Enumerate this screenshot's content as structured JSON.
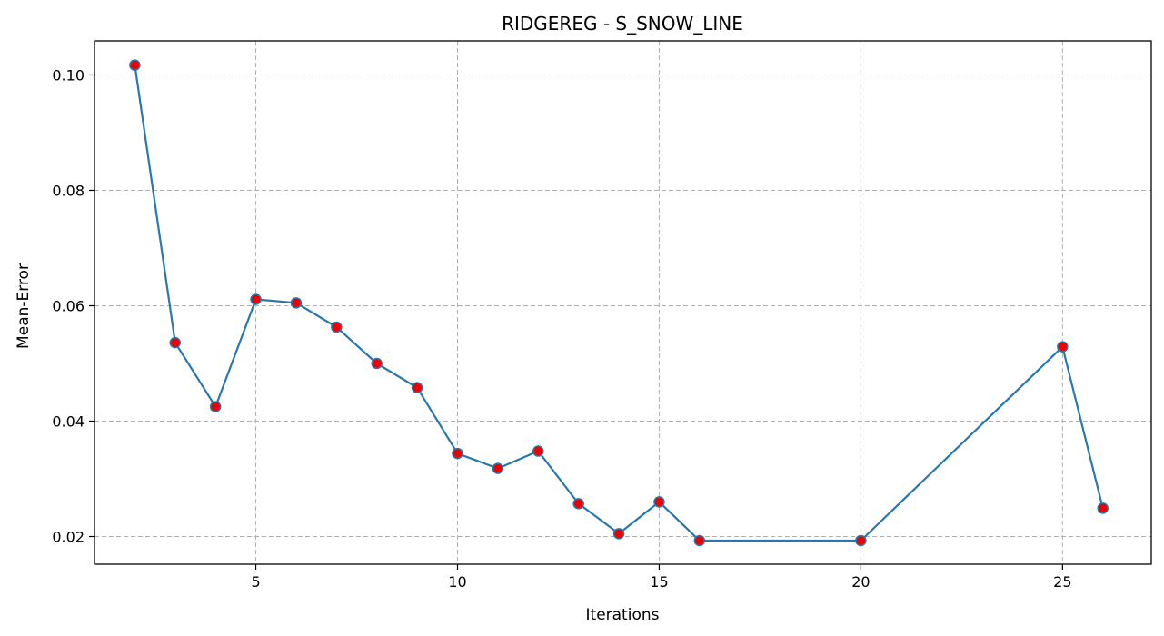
{
  "chart_data": {
    "type": "line",
    "title": "RIDGEREG - S_SNOW_LINE",
    "xlabel": "Iterations",
    "ylabel": "Mean-Error",
    "xlim": [
      1.0,
      27.2
    ],
    "ylim": [
      0.0152,
      0.1059
    ],
    "xticks": [
      5,
      10,
      15,
      20,
      25
    ],
    "yticks": [
      0.02,
      0.04,
      0.06,
      0.08,
      0.1
    ],
    "ytick_labels": [
      "0.02",
      "0.04",
      "0.06",
      "0.08",
      "0.10"
    ],
    "grid": true,
    "series": [
      {
        "line_color": "#2878b0",
        "marker_color": "#ee0000",
        "x": [
          2,
          3,
          4,
          5,
          6,
          7,
          8,
          9,
          10,
          11,
          12,
          13,
          14,
          15,
          16,
          20,
          25,
          26
        ],
        "y": [
          0.1017,
          0.0536,
          0.0425,
          0.0611,
          0.0605,
          0.0563,
          0.05,
          0.0458,
          0.0344,
          0.0318,
          0.0348,
          0.0257,
          0.0205,
          0.026,
          0.0193,
          0.0193,
          0.0529,
          0.0249
        ]
      }
    ]
  }
}
